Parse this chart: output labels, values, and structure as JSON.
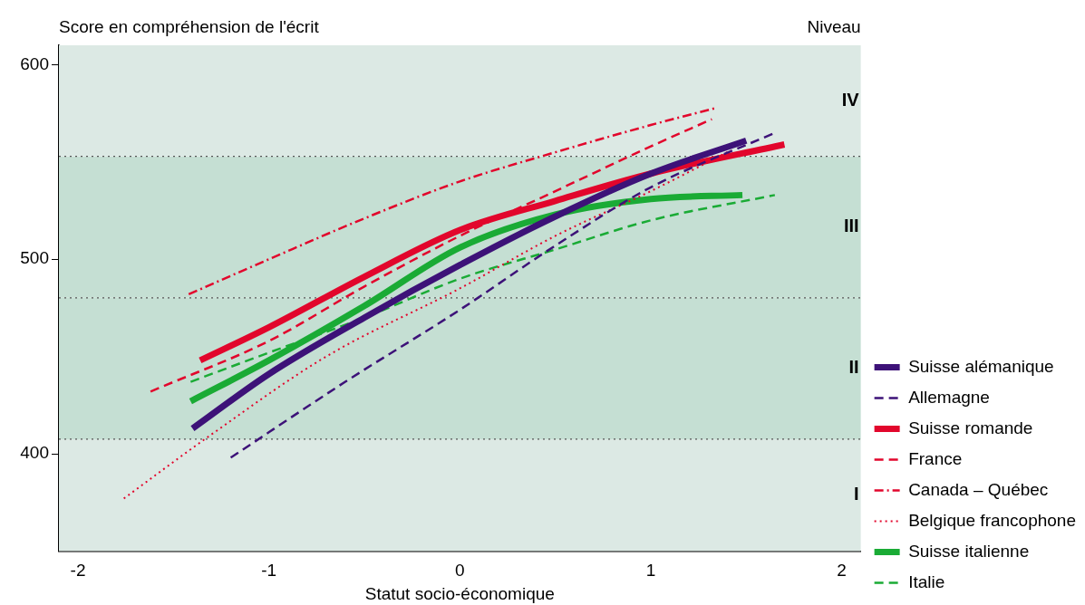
{
  "chart_data": {
    "type": "line",
    "ylabel": "Score en compréhension de l'écrit",
    "xlabel": "Statut socio-économique",
    "annotations": [
      "Niveau"
    ],
    "xlim": [
      -2.1,
      2.1
    ],
    "xticks": [
      -2,
      -1,
      0,
      1,
      2
    ],
    "ylim": [
      350,
      610
    ],
    "yticks": [
      400,
      500,
      600
    ],
    "grid": false,
    "legend": "right",
    "marker": "none",
    "bands": [
      {
        "axis": "y",
        "from": 350,
        "to": 407.47,
        "label": "I",
        "color": "#dce9e4"
      },
      {
        "axis": "y",
        "from": 407.47,
        "to": 480.18,
        "label": "II",
        "color": "#c5dfd3"
      },
      {
        "axis": "y",
        "from": 480.18,
        "to": 552.89,
        "label": "III",
        "color": "#c5dfd3"
      },
      {
        "axis": "y",
        "from": 552.89,
        "to": 610,
        "label": "IV",
        "color": "#dce9e4"
      }
    ],
    "ref_lines": [
      {
        "axis": "y",
        "value": 407.47,
        "color": "#555555",
        "line_style": "dotted"
      },
      {
        "axis": "y",
        "value": 480.18,
        "color": "#555555",
        "line_style": "dotted"
      },
      {
        "axis": "y",
        "value": 552.89,
        "color": "#555555",
        "line_style": "dotted"
      }
    ],
    "series": [
      {
        "name": "Suisse alémanique",
        "color": "#3d1278",
        "line_style": "solid",
        "x": [
          -1.4,
          -1,
          -0.5,
          0,
          0.5,
          1,
          1.5
        ],
        "values": [
          413,
          441,
          470,
          497,
          522,
          544,
          561
        ]
      },
      {
        "name": "Allemagne",
        "color": "#3d1278",
        "line_style": "dashed",
        "x": [
          -1.2,
          -0.6,
          0,
          0.5,
          1,
          1.65
        ],
        "values": [
          398,
          437,
          474,
          507,
          537,
          565
        ]
      },
      {
        "name": "Suisse romande",
        "color": "#e2062c",
        "line_style": "solid",
        "x": [
          -1.36,
          -1,
          -0.5,
          0,
          0.5,
          1,
          1.7
        ],
        "values": [
          448,
          465,
          491,
          515,
          530,
          544,
          559
        ]
      },
      {
        "name": "France",
        "color": "#e2062c",
        "line_style": "dashed",
        "x": [
          -1.62,
          -1,
          -0.5,
          0,
          0.5,
          1,
          1.32
        ],
        "values": [
          432,
          458,
          486,
          512,
          535,
          558,
          572
        ]
      },
      {
        "name": "Canada – Québec",
        "color": "#e2062c",
        "line_style": "dashdot",
        "x": [
          -1.42,
          -1,
          -0.5,
          0,
          0.5,
          1,
          1.35
        ],
        "values": [
          482,
          500,
          521,
          540,
          555,
          569,
          578
        ]
      },
      {
        "name": "Belgique francophone",
        "color": "#e2062c",
        "line_style": "dotted",
        "x": [
          -1.76,
          -1.3,
          -0.7,
          0,
          0.5,
          1,
          1.42
        ],
        "values": [
          377,
          410,
          450,
          485,
          512,
          535,
          556
        ]
      },
      {
        "name": "Suisse italienne",
        "color": "#1aab35",
        "line_style": "solid",
        "x": [
          -1.41,
          -1,
          -0.5,
          0,
          0.5,
          1,
          1.48
        ],
        "values": [
          427,
          448,
          476,
          506,
          523,
          531,
          533
        ]
      },
      {
        "name": "Italie",
        "color": "#1aab35",
        "line_style": "dashed",
        "x": [
          -1.41,
          -1,
          -0.5,
          0,
          0.5,
          1,
          1.65
        ],
        "values": [
          437,
          452,
          470,
          490,
          505,
          520,
          533
        ]
      }
    ]
  }
}
